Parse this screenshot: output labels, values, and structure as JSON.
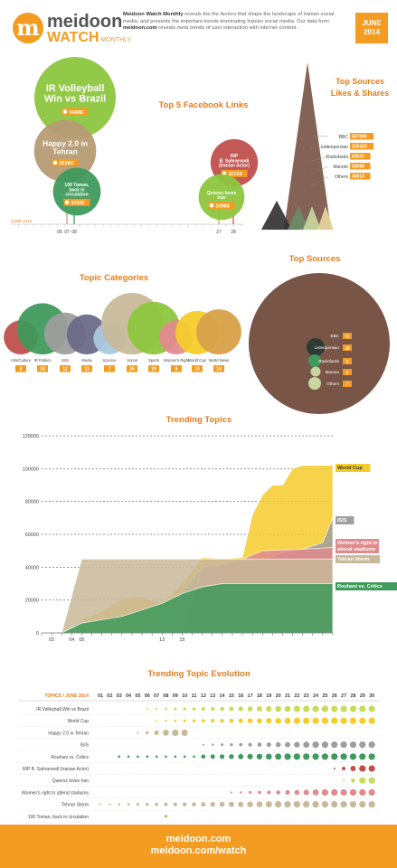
{
  "header": {
    "logo_letter": "m",
    "brand_name": "meidoon",
    "brand_sub": "WATCH",
    "brand_sub2": "MONTHLY",
    "intro_bold": "Meidoon Watch Monthly",
    "intro_text1": " reveals the the factors that shape the landscape of iranian social media, and presents the important trends dominating Iranian social media. Our data from ",
    "intro_bold2": "meidoon.com",
    "intro_text2": " reveals meta trends of user interaction with internet content.",
    "date_line1": "JUNE",
    "date_line2": "2014"
  },
  "colors": {
    "orange": "#f39c21",
    "green": "#8dc63f",
    "tan": "#b69c75",
    "darkgreen": "#3f9a5c",
    "brown": "#795548",
    "yellow": "#f5cc2c",
    "pink": "#e08b8e",
    "grey": "#9e9e9e"
  },
  "chart_data": [
    {
      "type": "scatter",
      "title": "Top 5 Facebook Links",
      "axis_label": "JUNE 2014",
      "x_ticks": [
        "06",
        "07",
        "08",
        "27",
        "28"
      ],
      "items": [
        {
          "label": "IR Volleyball Win vs Brazil",
          "value": "34688",
          "day": 8
        },
        {
          "label": "Happy 2.0 in Tehran",
          "value": "20183",
          "day": 7
        },
        {
          "label": "100 Toman, back in circulation",
          "value": "11925",
          "day": 8
        },
        {
          "label": "RIP B. Sahraroodi (Iranian Actor)",
          "value": "11724",
          "day": 28
        },
        {
          "label": "Quiersz loves Iran",
          "value": "10986",
          "day": 27
        }
      ]
    },
    {
      "type": "area",
      "title": "Top Sources Likes & Shares",
      "items": [
        {
          "label": "BBC",
          "value": "597096"
        },
        {
          "label": "Listenpersian",
          "value": "103433"
        },
        {
          "label": "Radiofarda",
          "value": "83547"
        },
        {
          "label": "Manoto",
          "value": "50698"
        },
        {
          "label": "Others",
          "value": "36913"
        }
      ]
    },
    {
      "type": "bubble",
      "title": "Topic Categories",
      "items": [
        {
          "label": "Arts/Culture",
          "value": "8"
        },
        {
          "label": "IR Politics",
          "value": "18"
        },
        {
          "label": "ISIS",
          "value": "12"
        },
        {
          "label": "Media",
          "value": "11"
        },
        {
          "label": "Science",
          "value": "7"
        },
        {
          "label": "Social",
          "value": "26"
        },
        {
          "label": "Sports",
          "value": "19"
        },
        {
          "label": "Women's Right",
          "value": "8"
        },
        {
          "label": "World Cup",
          "value": "13"
        },
        {
          "label": "World News",
          "value": "14"
        }
      ]
    },
    {
      "type": "bubble",
      "title": "Top Sources",
      "items": [
        {
          "label": "BBC",
          "value": "71"
        },
        {
          "label": "Listenpersian",
          "value": "16"
        },
        {
          "label": "Radiofarda",
          "value": "8"
        },
        {
          "label": "Manoto",
          "value": "6"
        },
        {
          "label": "Others",
          "value": "7"
        }
      ]
    },
    {
      "type": "area",
      "title": "Trending Topics",
      "y_ticks": [
        "0",
        "20000",
        "40000",
        "60000",
        "80000",
        "100000",
        "120000"
      ],
      "ylim": [
        0,
        120000
      ],
      "x_ticks": [
        "02",
        "04",
        "05",
        "13",
        "15"
      ],
      "series_labels": [
        "World Cup",
        "ISIS",
        "Women's right to attend stadiums",
        "Tehran Storm",
        "Rouhani vs. Critics"
      ]
    },
    {
      "type": "scatter",
      "title": "Trending Topic Evolution",
      "header_label": "TOPICS / JUNE 2014",
      "days": [
        "01",
        "02",
        "03",
        "04",
        "05",
        "06",
        "07",
        "08",
        "09",
        "10",
        "11",
        "12",
        "13",
        "14",
        "15",
        "16",
        "17",
        "18",
        "19",
        "20",
        "21",
        "22",
        "23",
        "24",
        "25",
        "26",
        "27",
        "28",
        "29",
        "30"
      ],
      "rows": [
        {
          "label": "IR Volleyball Win vs Brazil",
          "color": "#c8dc5a",
          "start": 6,
          "end": 30,
          "sizes": "mixed"
        },
        {
          "label": "World Cup",
          "color": "#f5cc2c",
          "start": 7,
          "end": 30
        },
        {
          "label": "Happy 2.0 in Tehran",
          "color": "#c8b99a",
          "start": 5,
          "end": 10
        },
        {
          "label": "ISIS",
          "color": "#9e9e9e",
          "start": 12,
          "end": 30
        },
        {
          "label": "Rouhani vs. Critics",
          "color": "#3f9a5c",
          "start": 3,
          "end": 30
        },
        {
          "label": "RIP B. Sahraroodi (Iranian Actor)",
          "color": "#c0504d",
          "start": 26,
          "end": 30
        },
        {
          "label": "Quiersz loves Iran",
          "color": "#c8dc5a",
          "start": 27,
          "end": 30
        },
        {
          "label": "Women's right to attend stadiums",
          "color": "#e08b8e",
          "start": 15,
          "end": 30
        },
        {
          "label": "Tehran Storm",
          "color": "#c8b99a",
          "start": 1,
          "end": 30
        },
        {
          "label": "100 Toman, back in circulation",
          "color": "#8dc63f",
          "start": 8,
          "end": 8
        }
      ]
    }
  ],
  "footer": {
    "line1": "meidoon.com",
    "line2": "meidoon.com/watch"
  }
}
